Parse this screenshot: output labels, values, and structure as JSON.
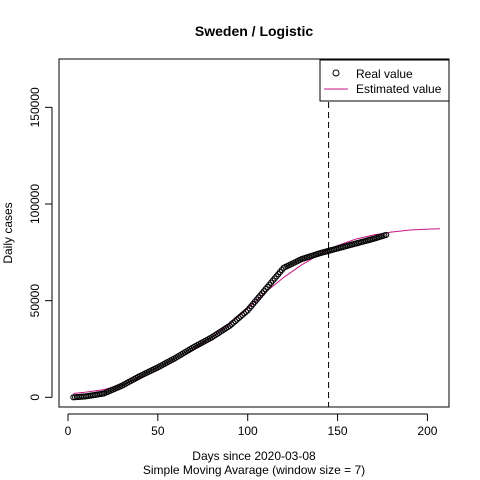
{
  "chart_data": {
    "type": "scatter",
    "title": "Sweden / Logistic",
    "xlabel": "Days since 2020-03-08",
    "xlabel2": "Simple Moving Avarage (window size = 7)",
    "ylabel": "Daily cases",
    "xlim": [
      -5,
      212
    ],
    "ylim": [
      -5000,
      175000
    ],
    "x_ticks": [
      0,
      50,
      100,
      150,
      200
    ],
    "y_ticks": [
      0,
      50000,
      100000,
      150000
    ],
    "vline_x": 145,
    "legend": {
      "position": "top-right",
      "entries": [
        {
          "label": "Real value",
          "style": "open-circle",
          "color": "#000000"
        },
        {
          "label": "Estimated value",
          "style": "line",
          "color": "#c71585"
        }
      ]
    },
    "series": [
      {
        "name": "Real value",
        "color": "#000000",
        "x_start": 3,
        "x_end": 177,
        "knots": [
          [
            3,
            0
          ],
          [
            10,
            500
          ],
          [
            20,
            2000
          ],
          [
            30,
            6000
          ],
          [
            40,
            11000
          ],
          [
            50,
            15500
          ],
          [
            60,
            20500
          ],
          [
            70,
            26000
          ],
          [
            80,
            31000
          ],
          [
            90,
            37000
          ],
          [
            100,
            45000
          ],
          [
            110,
            56000
          ],
          [
            120,
            67000
          ],
          [
            130,
            71500
          ],
          [
            140,
            74500
          ],
          [
            150,
            77000
          ],
          [
            160,
            79500
          ],
          [
            170,
            82000
          ],
          [
            177,
            84000
          ]
        ]
      },
      {
        "name": "Estimated value",
        "color": "#c71585",
        "x_start": 3,
        "x_end": 207,
        "knots": [
          [
            3,
            2000
          ],
          [
            10,
            2700
          ],
          [
            20,
            4000
          ],
          [
            30,
            6500
          ],
          [
            40,
            10000
          ],
          [
            50,
            14000
          ],
          [
            60,
            19000
          ],
          [
            70,
            25000
          ],
          [
            80,
            31000
          ],
          [
            90,
            38000
          ],
          [
            100,
            46000
          ],
          [
            110,
            54500
          ],
          [
            120,
            62000
          ],
          [
            130,
            68500
          ],
          [
            140,
            74000
          ],
          [
            150,
            78500
          ],
          [
            160,
            81800
          ],
          [
            170,
            84000
          ],
          [
            180,
            85500
          ],
          [
            190,
            86500
          ],
          [
            200,
            87000
          ],
          [
            207,
            87200
          ]
        ]
      }
    ]
  }
}
